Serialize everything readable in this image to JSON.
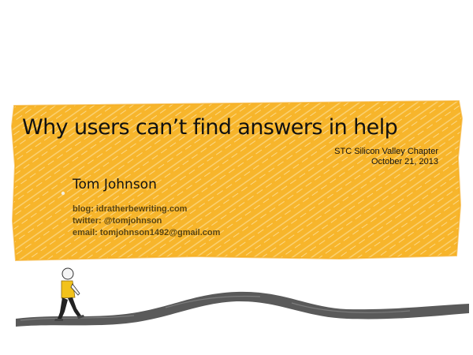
{
  "slide": {
    "title": "Why users can’t find answers in help",
    "event": {
      "organization": "STC Silicon Valley Chapter",
      "date": "October 21, 2013"
    },
    "author": "Tom Johnson",
    "contacts": {
      "blog": "blog: idratherbewriting.com",
      "twitter": "twitter: @tomjohnson",
      "email": "email: tomjohnson1492@gmail.com"
    }
  },
  "colors": {
    "banner": "#f7b52b",
    "banner_hatch": "#fbd886",
    "road": "#5a5a5a",
    "figure_shirt": "#f2c21a",
    "figure_pants": "#222222"
  }
}
